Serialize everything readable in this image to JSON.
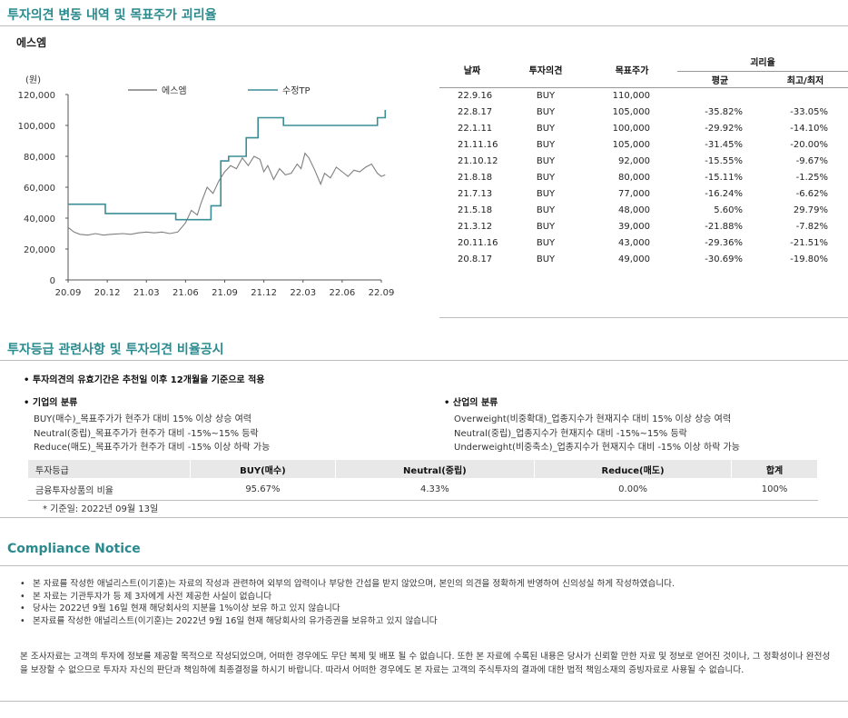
{
  "section1": {
    "title": "투자의견 변동 내역 및 목표주가 괴리율",
    "company": "에스엠"
  },
  "chart_data": {
    "type": "line",
    "ylabel": "(원)",
    "ylim": [
      0,
      120000
    ],
    "yticks": [
      "120,000",
      "100,000",
      "80,000",
      "60,000",
      "40,000",
      "20,000",
      "0"
    ],
    "xticks": [
      "20.09",
      "20.12",
      "21.03",
      "21.06",
      "21.09",
      "21.12",
      "22.03",
      "22.06",
      "22.09"
    ],
    "series": [
      {
        "name": "에스엠",
        "color": "#7f7f7f",
        "points": [
          [
            0,
            34000
          ],
          [
            0.15,
            31000
          ],
          [
            0.3,
            29500
          ],
          [
            0.5,
            29000
          ],
          [
            0.7,
            30000
          ],
          [
            0.9,
            29000
          ],
          [
            1.1,
            29500
          ],
          [
            1.4,
            30000
          ],
          [
            1.6,
            29500
          ],
          [
            1.8,
            30500
          ],
          [
            2.0,
            31000
          ],
          [
            2.2,
            30500
          ],
          [
            2.4,
            31000
          ],
          [
            2.6,
            30000
          ],
          [
            2.8,
            31000
          ],
          [
            3.0,
            37000
          ],
          [
            3.15,
            45000
          ],
          [
            3.3,
            42000
          ],
          [
            3.4,
            50000
          ],
          [
            3.55,
            60000
          ],
          [
            3.7,
            56000
          ],
          [
            3.85,
            64000
          ],
          [
            4.0,
            70000
          ],
          [
            4.15,
            74000
          ],
          [
            4.3,
            72000
          ],
          [
            4.45,
            79000
          ],
          [
            4.6,
            74000
          ],
          [
            4.75,
            80000
          ],
          [
            4.9,
            78000
          ],
          [
            5.0,
            70000
          ],
          [
            5.1,
            74000
          ],
          [
            5.25,
            65000
          ],
          [
            5.4,
            72000
          ],
          [
            5.55,
            68000
          ],
          [
            5.7,
            69000
          ],
          [
            5.85,
            75000
          ],
          [
            5.95,
            72000
          ],
          [
            6.05,
            82000
          ],
          [
            6.15,
            79000
          ],
          [
            6.3,
            71000
          ],
          [
            6.45,
            62000
          ],
          [
            6.55,
            69000
          ],
          [
            6.7,
            66000
          ],
          [
            6.85,
            73000
          ],
          [
            7.0,
            70000
          ],
          [
            7.15,
            67000
          ],
          [
            7.3,
            71000
          ],
          [
            7.45,
            70000
          ],
          [
            7.6,
            73000
          ],
          [
            7.75,
            75000
          ],
          [
            7.9,
            69000
          ],
          [
            8.0,
            67000
          ],
          [
            8.1,
            68000
          ]
        ]
      },
      {
        "name": "수정TP",
        "color": "#3a8e96",
        "points": [
          [
            0,
            49000
          ],
          [
            0.95,
            49000
          ],
          [
            0.95,
            43000
          ],
          [
            2.75,
            43000
          ],
          [
            2.75,
            39000
          ],
          [
            3.65,
            39000
          ],
          [
            3.65,
            48000
          ],
          [
            3.9,
            48000
          ],
          [
            3.9,
            77000
          ],
          [
            4.1,
            77000
          ],
          [
            4.1,
            80000
          ],
          [
            4.55,
            80000
          ],
          [
            4.55,
            92000
          ],
          [
            4.85,
            92000
          ],
          [
            4.85,
            105000
          ],
          [
            5.5,
            105000
          ],
          [
            5.5,
            100000
          ],
          [
            7.9,
            100000
          ],
          [
            7.9,
            105000
          ],
          [
            8.1,
            105000
          ],
          [
            8.1,
            110000
          ]
        ]
      }
    ]
  },
  "opinion_table": {
    "headers": {
      "date": "날짜",
      "opinion": "투자의견",
      "tp": "목표주가",
      "gap": "괴리율",
      "avg": "평균",
      "max": "최고/최저"
    },
    "rows": [
      {
        "date": "22.9.16",
        "op": "BUY",
        "tp": "110,000",
        "avg": "",
        "max": ""
      },
      {
        "date": "22.8.17",
        "op": "BUY",
        "tp": "105,000",
        "avg": "-35.82%",
        "max": "-33.05%"
      },
      {
        "date": "22.1.11",
        "op": "BUY",
        "tp": "100,000",
        "avg": "-29.92%",
        "max": "-14.10%"
      },
      {
        "date": "21.11.16",
        "op": "BUY",
        "tp": "105,000",
        "avg": "-31.45%",
        "max": "-20.00%"
      },
      {
        "date": "21.10.12",
        "op": "BUY",
        "tp": "92,000",
        "avg": "-15.55%",
        "max": "-9.67%"
      },
      {
        "date": "21.8.18",
        "op": "BUY",
        "tp": "80,000",
        "avg": "-15.11%",
        "max": "-1.25%"
      },
      {
        "date": "21.7.13",
        "op": "BUY",
        "tp": "77,000",
        "avg": "-16.24%",
        "max": "-6.62%"
      },
      {
        "date": "21.5.18",
        "op": "BUY",
        "tp": "48,000",
        "avg": "5.60%",
        "max": "29.79%"
      },
      {
        "date": "21.3.12",
        "op": "BUY",
        "tp": "39,000",
        "avg": "-21.88%",
        "max": "-7.82%"
      },
      {
        "date": "20.11.16",
        "op": "BUY",
        "tp": "43,000",
        "avg": "-29.36%",
        "max": "-21.51%"
      },
      {
        "date": "20.8.17",
        "op": "BUY",
        "tp": "49,000",
        "avg": "-30.69%",
        "max": "-19.80%"
      }
    ]
  },
  "section2": {
    "title": "투자등급 관련사항 및 투자의견 비율공시",
    "validity": "투자의견의 유효기간은 추천일 이후 12개월을 기준으로 적용",
    "company_class": {
      "heading": "기업의 분류",
      "lines": [
        "BUY(매수)_목표주가가 현주가 대비 15% 이상 상승 여력",
        "Neutral(중립)_목표주가가 현주가 대비 -15%~15% 등락",
        "Reduce(매도)_목표주가가 현주가 대비 -15% 이상 하락 가능"
      ]
    },
    "industry_class": {
      "heading": "산업의 분류",
      "lines": [
        "Overweight(비중확대)_업종지수가 현재지수 대비 15% 이상 상승 여력",
        "Neutral(중립)_업종지수가 현재지수 대비 -15%~15% 등락",
        "Underweight(비중축소)_업종지수가 현재지수 대비 -15% 이상 하락 가능"
      ]
    },
    "ratio_table": {
      "headers": [
        "투자등급",
        "BUY(매수)",
        "Neutral(중립)",
        "Reduce(매도)",
        "합계"
      ],
      "row": [
        "금융투자상품의 비율",
        "95.67%",
        "4.33%",
        "0.00%",
        "100%"
      ]
    },
    "note": "* 기준일: 2022년 09월 13일"
  },
  "compliance": {
    "title": "Compliance Notice",
    "items": [
      "본 자료를 작성한 애널리스트(이기훈)는 자료의 작성과 관련하여 외부의 압력이나 부당한 간섭을 받지 않았으며, 본인의 의견을 정확하게 반영하여 신의성실 하게 작성하였습니다.",
      "본 자료는 기관투자가 등 제 3자에게 사전 제공한 사실이 없습니다",
      "당사는 2022년 9월 16일 현재 해당회사의 지분을 1%이상 보유 하고 있지 않습니다",
      "본자료를 작성한 애널리스트(이기훈)는 2022년 9월 16일 현재 해당회사의 유가증권을 보유하고 있지 않습니다"
    ],
    "disclaimer": "본 조사자료는 고객의 투자에 정보를 제공할 목적으로 작성되었으며, 어떠한 경우에도 무단 복제 및 배포 될 수 없습니다. 또한 본 자료에 수록된 내용은 당사가 신뢰할 만한 자료 및 정보로 얻어진 것이나, 그 정확성이나 완전성을 보장할 수 없으므로 투자자 자신의 판단과 책임하에 최종결정을 하시기 바랍니다. 따라서 어떠한 경우에도 본 자료는 고객의 주식투자의 결과에 대한 법적 책임소재의 증빙자료로 사용될 수 없습니다."
  },
  "colors": {
    "accent": "#2a8a8e",
    "price_line": "#7f7f7f",
    "tp_line": "#3a8e96"
  }
}
